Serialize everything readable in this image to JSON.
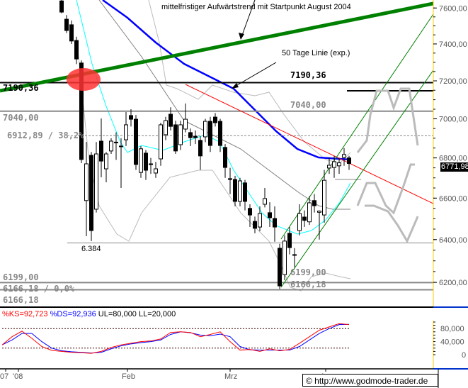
{
  "chart_data": {
    "type": "candlestick",
    "scale": "log",
    "ylim": [
      6150,
      7650
    ],
    "y_ticks": [
      "7600,00",
      "7400,00",
      "7200,00",
      "7000,00",
      "6800,00",
      "6600,00",
      "6400,00",
      "6200,00"
    ],
    "y_tick_values": [
      7600,
      7400,
      7200,
      7000,
      6800,
      6600,
      6400,
      6200
    ],
    "x_tick_labels": [
      "07",
      "'08",
      "Feb",
      "Mrz",
      "Apr"
    ],
    "last_price": "6771,98",
    "candles": [
      [
        7640,
        7660,
        7570,
        7577
      ],
      [
        7537,
        7560,
        7460,
        7474
      ],
      [
        7506,
        7530,
        7400,
        7416
      ],
      [
        7419,
        7440,
        7290,
        7318
      ],
      [
        7296,
        7310,
        6774,
        6792
      ],
      [
        6588,
        6881,
        6416,
        6770
      ],
      [
        6813,
        6830,
        6393,
        6443
      ],
      [
        6546,
        6881,
        6530,
        6820
      ],
      [
        6885,
        7002,
        6703,
        6784
      ],
      [
        6745,
        6830,
        6678,
        6820
      ],
      [
        6835,
        6900,
        6820,
        6885
      ],
      [
        6880,
        6930,
        6790,
        6878
      ],
      [
        6860,
        6900,
        6650,
        6857
      ],
      [
        6892,
        7035,
        6860,
        6969
      ],
      [
        7017,
        7050,
        6960,
        6998
      ],
      [
        6998,
        7020,
        6740,
        6767
      ],
      [
        6727,
        6860,
        6700,
        6846
      ],
      [
        6824,
        6840,
        6690,
        6738
      ],
      [
        6770,
        6800,
        6720,
        6767
      ],
      [
        6724,
        6780,
        6700,
        6745
      ],
      [
        6795,
        6980,
        6760,
        6969
      ],
      [
        6918,
        7010,
        6890,
        6991
      ],
      [
        7024,
        7060,
        6940,
        6961
      ],
      [
        6969,
        6990,
        6820,
        6835
      ],
      [
        6867,
        6990,
        6840,
        6969
      ],
      [
        6947,
        7080,
        6930,
        6998
      ],
      [
        6929,
        6950,
        6860,
        6903
      ],
      [
        6910,
        6940,
        6870,
        6903
      ],
      [
        6889,
        6910,
        6740,
        6810
      ],
      [
        6907,
        7000,
        6880,
        6987
      ],
      [
        6987,
        7010,
        6830,
        6863
      ],
      [
        7009,
        7030,
        6960,
        6980
      ],
      [
        6987,
        7000,
        6830,
        6863
      ],
      [
        6853,
        6870,
        6700,
        6752
      ],
      [
        6696,
        6750,
        6620,
        6692
      ],
      [
        6692,
        6710,
        6560,
        6584
      ],
      [
        6584,
        6700,
        6560,
        6685
      ],
      [
        6675,
        6690,
        6540,
        6584
      ],
      [
        6550,
        6570,
        6460,
        6518
      ],
      [
        6487,
        6510,
        6430,
        6454
      ],
      [
        6460,
        6560,
        6440,
        6525
      ],
      [
        6570,
        6650,
        6555,
        6598
      ],
      [
        6529,
        6580,
        6460,
        6505
      ],
      [
        6501,
        6560,
        6390,
        6460
      ],
      [
        6359,
        6380,
        6170,
        6184
      ],
      [
        6236,
        6420,
        6210,
        6393
      ],
      [
        6430,
        6460,
        6330,
        6362
      ],
      [
        6329,
        6360,
        6270,
        6326
      ],
      [
        6443,
        6570,
        6420,
        6525
      ],
      [
        6508,
        6540,
        6460,
        6492
      ],
      [
        6485,
        6610,
        6470,
        6577
      ],
      [
        6588,
        6620,
        6530,
        6563
      ],
      [
        6531,
        6540,
        6400,
        6537
      ],
      [
        6518,
        6740,
        6480,
        6688
      ],
      [
        6749,
        6800,
        6720,
        6763
      ],
      [
        6752,
        6810,
        6700,
        6781
      ],
      [
        6760,
        6800,
        6720,
        6775
      ],
      [
        6802,
        6850,
        6760,
        6817
      ],
      [
        6800,
        6810,
        6740,
        6772
      ]
    ],
    "levels": [
      {
        "value": 7190.36,
        "label": "7190,36",
        "color": "#000000"
      },
      {
        "value": 7040.0,
        "label": "7040,00",
        "color": "#808080"
      },
      {
        "value": 6912.89,
        "label": "6912,89 / 38,2%",
        "color": "#808080"
      },
      {
        "value": 6384,
        "label": "6.384",
        "color": "#808080"
      },
      {
        "value": 6199.0,
        "label": "6199,00",
        "color": "#808080"
      },
      {
        "value": 6166.18,
        "label": "6166,18",
        "color": "#808080"
      }
    ],
    "bottom_left_labels": [
      "6166,18 / 0,0%",
      "6199,00",
      "6166,18"
    ],
    "annotations": {
      "trend": "mittelfristiger Aufwärtstrend mit Startpunkt August 2004",
      "ma50": "50 Tage Linie (exp.)"
    },
    "stochastic": {
      "header_k": "%KS=92,723",
      "header_d": "%DS=92,936",
      "header_rest": "UL=80,000 LL=20,000",
      "ylim": [
        0,
        100
      ],
      "upper": 80,
      "lower": 20,
      "y_ticks": [
        "80,000",
        "40,000",
        "0"
      ],
      "y_tick_values": [
        80,
        40,
        0
      ],
      "k": [
        30,
        55,
        72,
        50,
        25,
        13,
        10,
        7,
        6,
        4,
        10,
        22,
        30,
        35,
        40,
        42,
        48,
        68,
        70,
        68,
        55,
        62,
        70,
        40,
        14,
        16,
        10,
        18,
        12,
        16,
        35,
        55,
        75,
        85,
        95,
        92
      ],
      "d": [
        30,
        45,
        65,
        65,
        40,
        20,
        12,
        9,
        7,
        5,
        7,
        18,
        27,
        33,
        37,
        40,
        45,
        62,
        70,
        67,
        60,
        58,
        63,
        55,
        25,
        15,
        14,
        14,
        14,
        14,
        25,
        45,
        65,
        80,
        92,
        93
      ]
    },
    "colors": {
      "k": "#ff0000",
      "d": "#0000ff",
      "ma50": "#0000ff",
      "fast_ma": "#00ffff",
      "trend": "#008000",
      "downtrend": "#ff0000",
      "axis": "#ffcc00",
      "highlight": "#ff3333"
    }
  },
  "footer": {
    "copyright": "© http://www.godmode-trader.de"
  }
}
